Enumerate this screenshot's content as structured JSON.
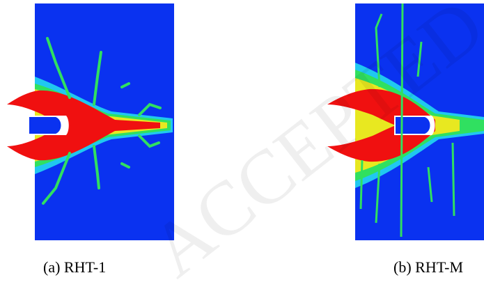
{
  "watermark": "ACCEPTED MANUSCRIPT",
  "panels": [
    {
      "caption": "(a) RHT-1"
    },
    {
      "caption": "(b) RHT-M"
    }
  ]
}
